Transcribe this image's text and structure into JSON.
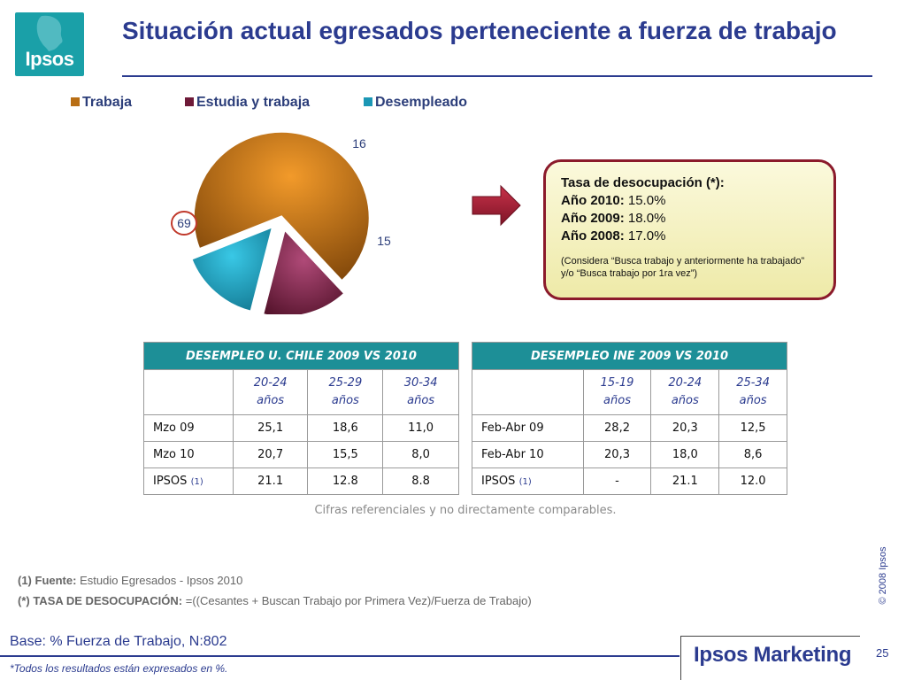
{
  "logo": {
    "text": "Ipsos"
  },
  "title": "Situación actual egresados perteneciente a fuerza de trabajo",
  "legend": [
    {
      "label": "Trabaja",
      "color": "#b86e14"
    },
    {
      "label": "Estudia y trabaja",
      "color": "#6e1a38"
    },
    {
      "label": "Desempleado",
      "color": "#1b97b5"
    }
  ],
  "chart_data": {
    "type": "pie",
    "title": "",
    "slices": [
      {
        "name": "Trabaja",
        "value": 69,
        "label": "69",
        "color": "#b86e14"
      },
      {
        "name": "Estudia y trabaja",
        "value": 16,
        "label": "16",
        "color": "#7a1f45"
      },
      {
        "name": "Desempleado",
        "value": 15,
        "label": "15",
        "color": "#1b97b5"
      }
    ],
    "legend_position": "top",
    "exploded": [
      "Estudia y trabaja",
      "Desempleado"
    ]
  },
  "callout": {
    "title": "Tasa de desocupación (*):",
    "lines": [
      {
        "label": "Año 2010:",
        "value": "15.0%"
      },
      {
        "label": "Año 2009:",
        "value": "18.0%"
      },
      {
        "label": "Año 2008:",
        "value": "17.0%"
      }
    ],
    "note": "(Considera “Busca trabajo y anteriormente ha trabajado” y/o “Busca trabajo por 1ra vez”)"
  },
  "table_uchile": {
    "caption": "DESEMPLEO U. CHILE 2009 VS 2010",
    "columns": [
      {
        "range": "20-24",
        "unit": "años"
      },
      {
        "range": "25-29",
        "unit": "años"
      },
      {
        "range": "30-34",
        "unit": "años"
      }
    ],
    "rows": [
      {
        "label": "Mzo 09",
        "suffix": "",
        "values": [
          "25,1",
          "18,6",
          "11,0"
        ]
      },
      {
        "label": "Mzo 10",
        "suffix": "",
        "values": [
          "20,7",
          "15,5",
          "8,0"
        ]
      },
      {
        "label": "IPSOS",
        "suffix": "(1)",
        "values": [
          "21.1",
          "12.8",
          "8.8"
        ]
      }
    ]
  },
  "table_ine": {
    "caption": "DESEMPLEO INE 2009 VS 2010",
    "columns": [
      {
        "range": "15-19",
        "unit": "años"
      },
      {
        "range": "20-24",
        "unit": "años"
      },
      {
        "range": "25-34",
        "unit": "años"
      }
    ],
    "rows": [
      {
        "label": "Feb-Abr 09",
        "suffix": "",
        "values": [
          "28,2",
          "20,3",
          "12,5"
        ]
      },
      {
        "label": "Feb-Abr 10",
        "suffix": "",
        "values": [
          "20,3",
          "18,0",
          "8,6"
        ]
      },
      {
        "label": "IPSOS",
        "suffix": "(1)",
        "values": [
          "-",
          "21.1",
          "12.0"
        ]
      }
    ]
  },
  "table_note": "Cifras referenciales y no directamente comparables.",
  "footnotes": {
    "source_label": "(1) Fuente:",
    "source_text": "Estudio Egresados -  Ipsos 2010",
    "formula_label": "(*) TASA DE DESOCUPACIÓN:",
    "formula_text": "=((Cesantes + Buscan Trabajo por Primera Vez)/Fuerza de Trabajo)"
  },
  "copyright": "© 2008 Ipsos",
  "base": "Base: % Fuerza de Trabajo, N:802",
  "results_note": "*Todos los resultados están expresados en %.",
  "brand": "Ipsos Marketing",
  "page_number": "25"
}
